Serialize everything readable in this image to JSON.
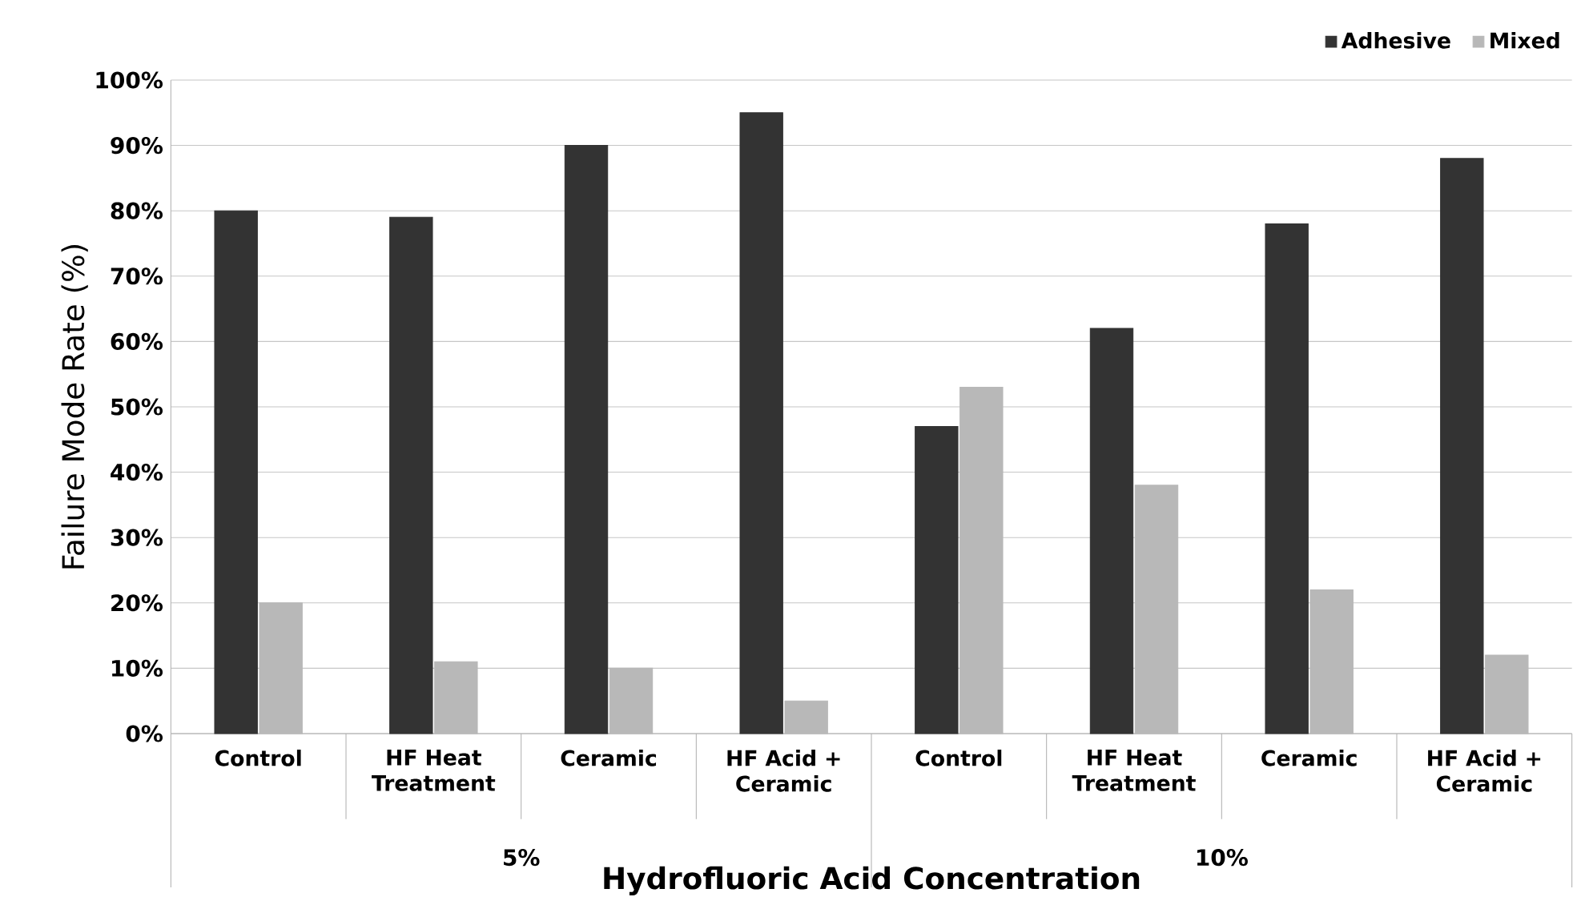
{
  "chart_data": {
    "type": "bar",
    "xlabel": "Hydrofluoric Acid Concentration",
    "ylabel": "Failure Mode Rate (%)",
    "categories": [
      "Control",
      "HF Heat Treatment",
      "Ceramic",
      "HF Acid + Ceramic",
      "Control",
      "HF Heat Treatment",
      "Ceramic",
      "HF Acid + Ceramic"
    ],
    "series": [
      {
        "name": "Adhesive",
        "color": "#333333",
        "values": [
          80,
          79,
          90,
          95,
          47,
          62,
          78,
          88
        ]
      },
      {
        "name": "Mixed",
        "color": "#b8b8b8",
        "values": [
          20,
          11,
          10,
          5,
          53,
          38,
          22,
          12
        ]
      }
    ],
    "annotations": [
      "5%",
      "10%"
    ],
    "ylim": [
      0,
      100
    ],
    "yticks": [
      {
        "value": 0,
        "label": "0%"
      },
      {
        "value": 10,
        "label": "10%"
      },
      {
        "value": 20,
        "label": "20%"
      },
      {
        "value": 30,
        "label": "30%"
      },
      {
        "value": 40,
        "label": "40%"
      },
      {
        "value": 50,
        "label": "50%"
      },
      {
        "value": 60,
        "label": "60%"
      },
      {
        "value": 70,
        "label": "70%"
      },
      {
        "value": 80,
        "label": "80%"
      },
      {
        "value": 90,
        "label": "90%"
      },
      {
        "value": 100,
        "label": "100%"
      }
    ],
    "grid": "y",
    "legend": "top right"
  }
}
